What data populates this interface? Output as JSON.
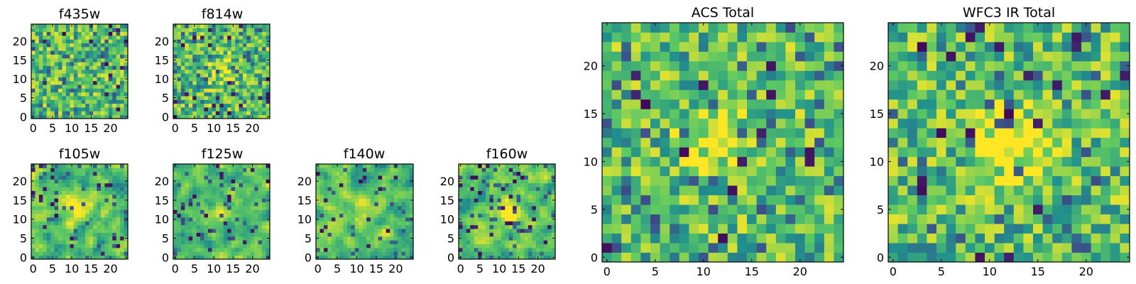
{
  "colors": {
    "colormap": [
      "#440154",
      "#3b528b",
      "#21918c",
      "#5ec962",
      "#fde725"
    ],
    "frame": "#000000"
  },
  "chart_data": [
    {
      "type": "heatmap",
      "title": "f435w",
      "grid_size": 25,
      "xlim": [
        -0.5,
        24.5
      ],
      "ylim": [
        -0.5,
        24.5
      ],
      "xticks": [
        0,
        5,
        10,
        15,
        20
      ],
      "yticks": [
        0,
        5,
        10,
        15,
        20
      ],
      "seed": 11,
      "smooth": 0,
      "blob": [
        0,
        0,
        0
      ]
    },
    {
      "type": "heatmap",
      "title": "f814w",
      "grid_size": 25,
      "xlim": [
        -0.5,
        24.5
      ],
      "ylim": [
        -0.5,
        24.5
      ],
      "xticks": [
        0,
        5,
        10,
        15,
        20
      ],
      "yticks": [
        0,
        5,
        10,
        15,
        20
      ],
      "seed": 23,
      "smooth": 0,
      "blob": [
        12,
        12,
        0.25
      ]
    },
    {
      "type": "heatmap",
      "title": "f105w",
      "grid_size": 25,
      "xlim": [
        -0.5,
        24.5
      ],
      "ylim": [
        -0.5,
        24.5
      ],
      "xticks": [
        0,
        5,
        10,
        15,
        20
      ],
      "yticks": [
        0,
        5,
        10,
        15,
        20
      ],
      "seed": 37,
      "smooth": 1,
      "blob": [
        12,
        13,
        0.35
      ]
    },
    {
      "type": "heatmap",
      "title": "f125w",
      "grid_size": 25,
      "xlim": [
        -0.5,
        24.5
      ],
      "ylim": [
        -0.5,
        24.5
      ],
      "xticks": [
        0,
        5,
        10,
        15,
        20
      ],
      "yticks": [
        0,
        5,
        10,
        15,
        20
      ],
      "seed": 41,
      "smooth": 1,
      "blob": [
        12,
        12,
        0.2
      ]
    },
    {
      "type": "heatmap",
      "title": "f140w",
      "grid_size": 25,
      "xlim": [
        -0.5,
        24.5
      ],
      "ylim": [
        -0.5,
        24.5
      ],
      "xticks": [
        0,
        5,
        10,
        15,
        20
      ],
      "yticks": [
        0,
        5,
        10,
        15,
        20
      ],
      "seed": 53,
      "smooth": 1,
      "blob": [
        12,
        12,
        0.15
      ]
    },
    {
      "type": "heatmap",
      "title": "f160w",
      "grid_size": 25,
      "xlim": [
        -0.5,
        24.5
      ],
      "ylim": [
        -0.5,
        24.5
      ],
      "xticks": [
        0,
        5,
        10,
        15,
        20
      ],
      "yticks": [
        0,
        5,
        10,
        15,
        20
      ],
      "seed": 67,
      "smooth": 1,
      "blob": [
        12,
        12,
        0.35
      ]
    },
    {
      "type": "heatmap",
      "title": "ACS Total",
      "grid_size": 25,
      "xlim": [
        -0.5,
        24.5
      ],
      "ylim": [
        -0.5,
        24.5
      ],
      "xticks": [
        0,
        5,
        10,
        15,
        20
      ],
      "yticks": [
        0,
        5,
        10,
        15,
        20
      ],
      "seed": 79,
      "smooth": 0,
      "blob": [
        11,
        12,
        0.3
      ]
    },
    {
      "type": "heatmap",
      "title": "WFC3 IR Total",
      "grid_size": 25,
      "xlim": [
        -0.5,
        24.5
      ],
      "ylim": [
        -0.5,
        24.5
      ],
      "xticks": [
        0,
        5,
        10,
        15,
        20
      ],
      "yticks": [
        0,
        5,
        10,
        15,
        20
      ],
      "seed": 97,
      "smooth": 0,
      "blob": [
        12,
        12,
        0.45
      ]
    }
  ]
}
